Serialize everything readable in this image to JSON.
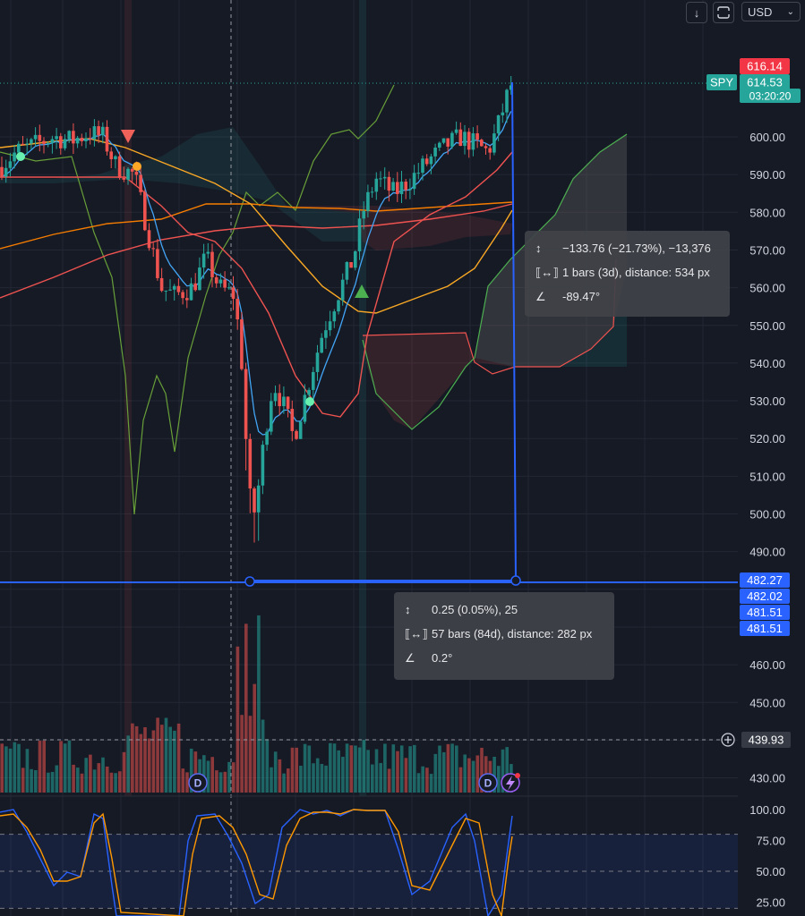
{
  "toolbar": {
    "download_icon": "arrow-down-icon",
    "fullscreen_icon": "fullscreen-icon",
    "currency": "USD",
    "currency_chevron": "chevron-down-icon"
  },
  "price_tags": {
    "top": {
      "value": "616.14",
      "color": "#f23645"
    },
    "symbol": "SPY",
    "last": {
      "value": "614.53",
      "color": "#26a69a"
    },
    "countdown": "03:20:20",
    "low_tags": [
      {
        "value": "482.27",
        "color": "#2962ff"
      },
      {
        "value": "482.02",
        "color": "#2962ff"
      },
      {
        "value": "481.51",
        "color": "#2962ff"
      },
      {
        "value": "481.51",
        "color": "#2962ff"
      }
    ],
    "crosshair": {
      "value": "439.93",
      "plus_icon": "plus-circle-icon"
    }
  },
  "measure_1": {
    "price_icon": "price-range-icon",
    "price": "−133.76 (−21.73%), −13,376",
    "bars_icon": "bars-range-icon",
    "bars": "1 bars (3d), distance: 534 px",
    "angle_icon": "angle-icon",
    "angle": "-89.47°"
  },
  "measure_2": {
    "price_icon": "price-range-icon",
    "price": "0.25 (0.05%), 25",
    "bars_icon": "bars-range-icon",
    "bars": "57 bars (84d), distance: 282 px",
    "angle_icon": "angle-icon",
    "angle": "0.2°"
  },
  "markers": {
    "dividend": "D",
    "flash_icon": "lightning-icon"
  },
  "colors": {
    "background": "#161a25",
    "up": "#26a69a",
    "down": "#ef5350",
    "measure_line": "#2962ff",
    "stoch_k": "#2962ff",
    "stoch_d": "#ff9800"
  },
  "chart_data": {
    "type": "candlestick",
    "price_axis": {
      "ticks": [
        "600.00",
        "590.00",
        "580.00",
        "570.00",
        "560.00",
        "550.00",
        "540.00",
        "530.00",
        "520.00",
        "510.00",
        "500.00",
        "490.00",
        "460.00",
        "450.00",
        "430.00"
      ],
      "range": [
        428,
        620
      ]
    },
    "stochastic_axis": {
      "ticks": [
        "100.00",
        "75.00",
        "50.00",
        "25.00"
      ],
      "range": [
        20,
        105
      ]
    },
    "last_price": 614.53,
    "high_price": 616.14,
    "low_price": 482.27,
    "stochastic": {
      "k_color": "#2962ff",
      "d_color": "#ff9800",
      "overbought": 80,
      "oversold": 20
    }
  }
}
